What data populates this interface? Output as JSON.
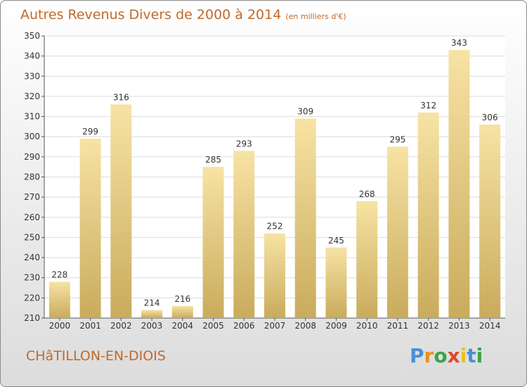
{
  "title": "Autres Revenus Divers de 2000 à 2014",
  "subtitle": "(en milliers d'€)",
  "location": "CHâTILLON-EN-DIOIS",
  "brand": {
    "letters": [
      "P",
      "r",
      "o",
      "x",
      "i",
      "t",
      "i"
    ],
    "colors": [
      "#4a8fd6",
      "#e7901c",
      "#3aa34a",
      "#d94a2a",
      "#e7c21c",
      "#4a8fd6",
      "#3aa34a"
    ]
  },
  "colors": {
    "title": "#c06a2b",
    "bar_top": "#f7e3a4",
    "bar_bottom": "#c9ab5c",
    "grid": "#dcdcdc"
  },
  "chart_data": {
    "type": "bar",
    "categories": [
      "2000",
      "2001",
      "2002",
      "2003",
      "2004",
      "2005",
      "2006",
      "2007",
      "2008",
      "2009",
      "2010",
      "2011",
      "2012",
      "2013",
      "2014"
    ],
    "values": [
      228,
      299,
      316,
      214,
      216,
      285,
      293,
      252,
      309,
      245,
      268,
      295,
      312,
      343,
      306
    ],
    "ylim": [
      210,
      350
    ],
    "yticks": [
      210,
      220,
      230,
      240,
      250,
      260,
      270,
      280,
      290,
      300,
      310,
      320,
      330,
      340,
      350
    ],
    "grid": true,
    "data_labels": true
  }
}
